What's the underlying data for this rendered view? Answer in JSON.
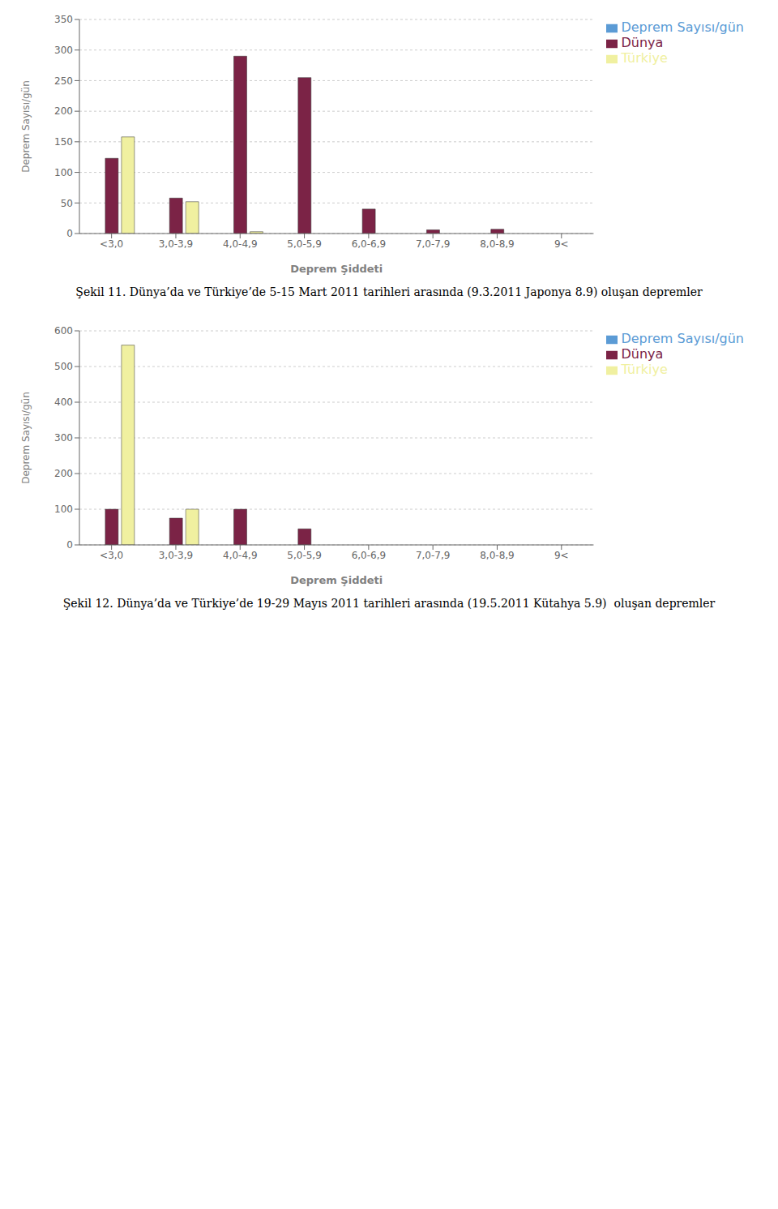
{
  "chart_data": [
    {
      "type": "bar",
      "title": "Şekil 11. Dünya’da ve Türkiye’de 5-15 Mart 2011 tarihleri arasında (9.3.2011 Japonya 8.9) oluşan depremler",
      "categories": [
        "<3,0",
        "3,0-3,9",
        "4,0-4,9",
        "5,0-5,9",
        "6,0-6,9",
        "7,0-7,9",
        "8,0-8,9",
        "9<"
      ],
      "series": [
        {
          "name": "Deprem Sayısı/gün",
          "color": "#5b9bd5",
          "values": [
            0,
            0,
            0,
            0,
            0,
            0,
            0,
            0
          ]
        },
        {
          "name": "Dünya",
          "color": "#7b2346",
          "values": [
            123,
            58,
            290,
            255,
            40,
            6,
            7,
            0
          ]
        },
        {
          "name": "Türkiye",
          "color": "#f0f0a0",
          "values": [
            158,
            52,
            3,
            0,
            0,
            0,
            0,
            0
          ]
        }
      ],
      "xlabel": "Deprem Şiddeti",
      "ylabel": "Deprem Sayısı/gün",
      "ylim": [
        0,
        350
      ],
      "yticks": [
        0,
        50,
        100,
        150,
        200,
        250,
        300,
        350
      ],
      "grid": true,
      "legend": "right"
    },
    {
      "type": "bar",
      "title": "Şekil 12. Dünya’da ve Türkiye’de 19-29 Mayıs 2011 tarihleri arasında (19.5.2011 Kütahya 5.9)  oluşan depremler",
      "categories": [
        "<3,0",
        "3,0-3,9",
        "4,0-4,9",
        "5,0-5,9",
        "6,0-6,9",
        "7,0-7,9",
        "8,0-8,9",
        "9<"
      ],
      "series": [
        {
          "name": "Deprem Sayısı/gün",
          "color": "#5b9bd5",
          "values": [
            0,
            0,
            0,
            0,
            0,
            0,
            0,
            0
          ]
        },
        {
          "name": "Dünya",
          "color": "#7b2346",
          "values": [
            100,
            75,
            100,
            45,
            0,
            0,
            0,
            0
          ]
        },
        {
          "name": "Türkiye",
          "color": "#f0f0a0",
          "values": [
            560,
            100,
            0,
            0,
            0,
            0,
            0,
            0
          ]
        }
      ],
      "xlabel": "Deprem Şiddeti",
      "ylabel": "Deprem Sayısı/gün",
      "ylim": [
        0,
        600
      ],
      "yticks": [
        0,
        100,
        200,
        300,
        400,
        500,
        600
      ],
      "grid": true,
      "legend": "right"
    }
  ]
}
